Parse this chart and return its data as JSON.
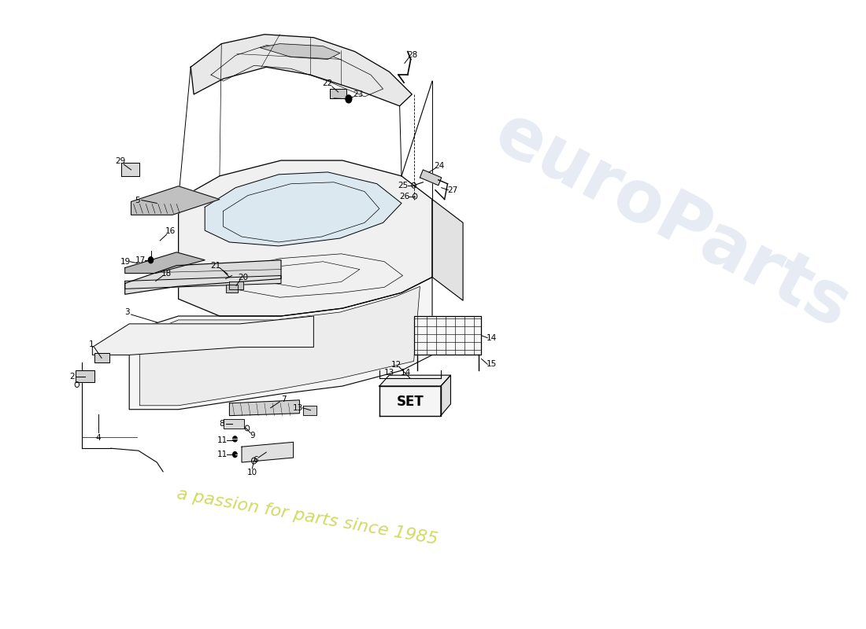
{
  "background_color": "#ffffff",
  "watermark_text1": "euroParts",
  "watermark_text2": "a passion for parts since 1985",
  "watermark_color1": "#c8d4e8",
  "watermark_color2": "#c8d448",
  "figsize": [
    11.0,
    8.0
  ],
  "dpi": 100,
  "line_color": "#000000",
  "fill_body": "#e8e8e8",
  "fill_light": "#f0f0f0",
  "fill_floor": "#f5f5f5",
  "fill_part": "#d8d8d8",
  "fill_window": "#dce8f0"
}
